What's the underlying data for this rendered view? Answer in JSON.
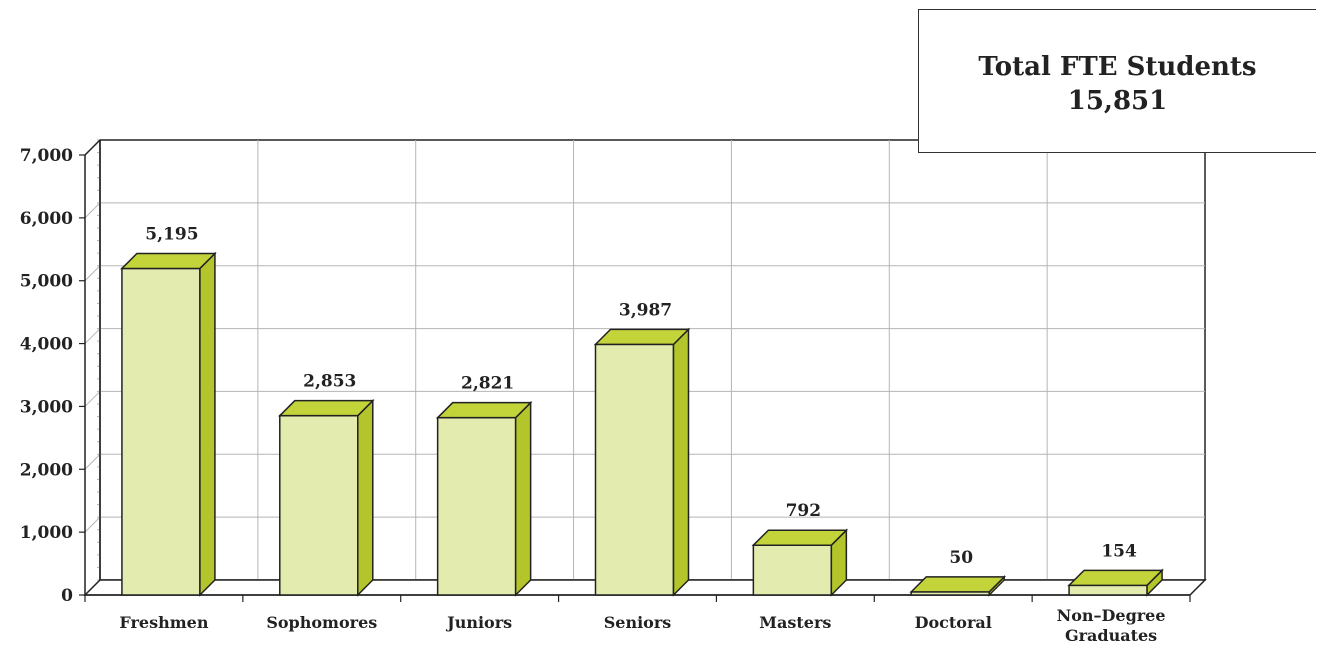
{
  "total_box": {
    "title": "Total FTE Students",
    "value": "15,851"
  },
  "colors": {
    "bar_front": "#e3ecae",
    "bar_top": "#c3d33a",
    "bar_side": "#b3c52a",
    "stroke": "#222222",
    "grid": "#b5b5b5"
  },
  "chart_data": {
    "type": "bar",
    "title": "",
    "xlabel": "",
    "ylabel": "",
    "ylim": [
      0,
      7000
    ],
    "yticks": [
      0,
      1000,
      2000,
      3000,
      4000,
      5000,
      6000,
      7000
    ],
    "ytick_labels": [
      "0",
      "1,000",
      "2,000",
      "3,000",
      "4,000",
      "5,000",
      "6,000",
      "7,000"
    ],
    "grid": true,
    "legend": "none",
    "categories": [
      "Freshmen",
      "Sophomores",
      "Juniors",
      "Seniors",
      "Masters",
      "Doctoral",
      "Non–Degree Graduates"
    ],
    "category_lines": [
      [
        "Freshmen"
      ],
      [
        "Sophomores"
      ],
      [
        "Juniors"
      ],
      [
        "Seniors"
      ],
      [
        "Masters"
      ],
      [
        "Doctoral"
      ],
      [
        "Non–Degree",
        "Graduates"
      ]
    ],
    "values": [
      5195,
      2853,
      2821,
      3987,
      792,
      50,
      154
    ],
    "value_labels": [
      "5,195",
      "2,853",
      "2,821",
      "3,987",
      "792",
      "50",
      "154"
    ]
  }
}
